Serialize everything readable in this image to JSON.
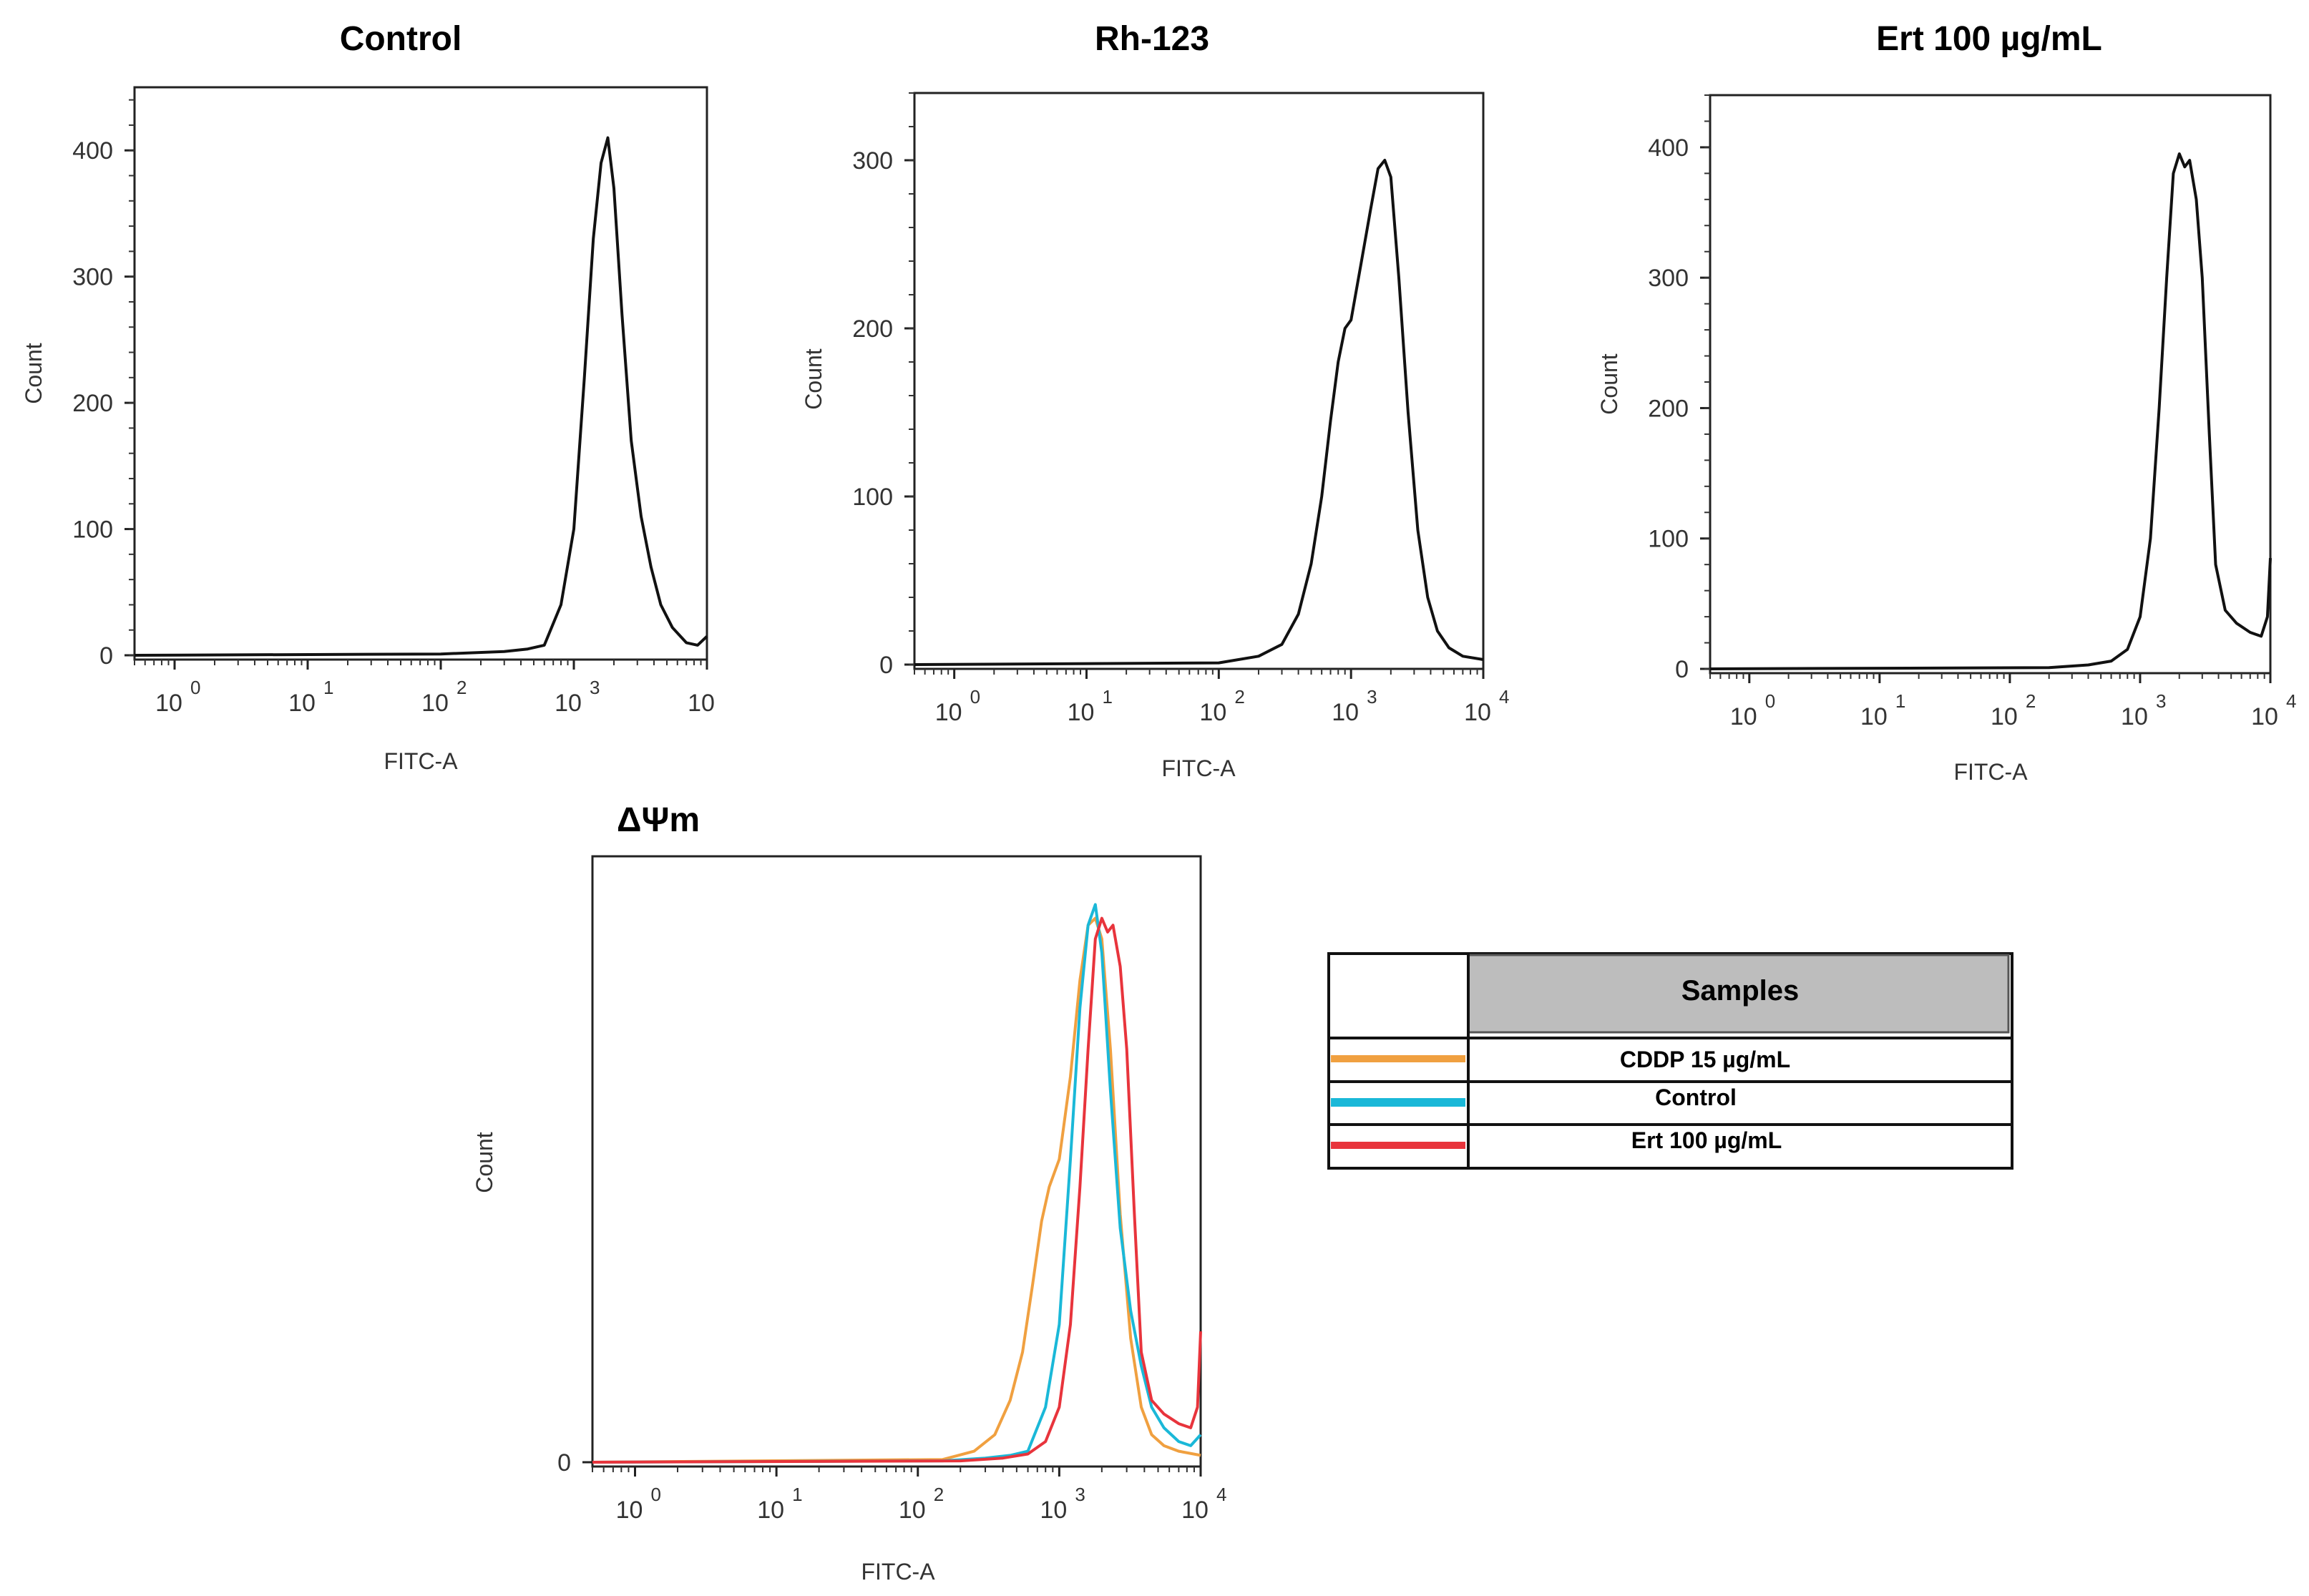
{
  "chart_data": [
    {
      "id": "control",
      "type": "line",
      "title": "Control",
      "xlabel": "FITC-A",
      "ylabel": "Count",
      "xscale": "log",
      "xlim": [
        0.5,
        10000
      ],
      "ylim": [
        0,
        450
      ],
      "yticks": [
        "0",
        "100",
        "200",
        "300",
        "400"
      ],
      "ytick_values": [
        0,
        100,
        200,
        300,
        400
      ],
      "xticks": [
        {
          "base": "10",
          "exp": "0",
          "value": 1
        },
        {
          "base": "10",
          "exp": "1",
          "value": 10
        },
        {
          "base": "10",
          "exp": "2",
          "value": 100
        },
        {
          "base": "10",
          "exp": "3",
          "value": 1000
        },
        {
          "base": "10",
          "exp": "",
          "value": 10000
        }
      ],
      "series": [
        {
          "name": "Control",
          "color": "#111111",
          "x": [
            0.5,
            100,
            300,
            450,
            600,
            800,
            1000,
            1200,
            1400,
            1600,
            1800,
            2000,
            2300,
            2700,
            3200,
            3800,
            4500,
            5500,
            7000,
            8500,
            10000
          ],
          "y": [
            0,
            1,
            3,
            5,
            8,
            40,
            100,
            220,
            330,
            390,
            410,
            370,
            270,
            170,
            110,
            70,
            40,
            22,
            10,
            8,
            15
          ]
        }
      ]
    },
    {
      "id": "rh123",
      "type": "line",
      "title": "Rh-123",
      "xlabel": "FITC-A",
      "ylabel": "Count",
      "xscale": "log",
      "xlim": [
        0.5,
        10000
      ],
      "ylim": [
        0,
        340
      ],
      "yticks": [
        "0",
        "100",
        "200",
        "300"
      ],
      "ytick_values": [
        0,
        100,
        200,
        300
      ],
      "xticks": [
        {
          "base": "10",
          "exp": "0",
          "value": 1
        },
        {
          "base": "10",
          "exp": "1",
          "value": 10
        },
        {
          "base": "10",
          "exp": "2",
          "value": 100
        },
        {
          "base": "10",
          "exp": "3",
          "value": 1000
        },
        {
          "base": "10",
          "exp": "4",
          "value": 10000
        }
      ],
      "series": [
        {
          "name": "Rh-123",
          "color": "#111111",
          "x": [
            0.5,
            100,
            200,
            300,
            400,
            500,
            600,
            700,
            800,
            900,
            1000,
            1200,
            1400,
            1600,
            1800,
            2000,
            2300,
            2700,
            3200,
            3800,
            4500,
            5500,
            7000,
            10000
          ],
          "y": [
            0,
            1,
            5,
            12,
            30,
            60,
            100,
            145,
            180,
            200,
            205,
            240,
            270,
            295,
            300,
            290,
            230,
            150,
            80,
            40,
            20,
            10,
            5,
            3
          ]
        }
      ]
    },
    {
      "id": "ert100",
      "type": "line",
      "title": "Ert 100 µg/mL",
      "xlabel": "FITC-A",
      "ylabel": "Count",
      "xscale": "log",
      "xlim": [
        0.5,
        10000
      ],
      "ylim": [
        0,
        440
      ],
      "yticks": [
        "0",
        "100",
        "200",
        "300",
        "400"
      ],
      "ytick_values": [
        0,
        100,
        200,
        300,
        400
      ],
      "xticks": [
        {
          "base": "10",
          "exp": "0",
          "value": 1
        },
        {
          "base": "10",
          "exp": "1",
          "value": 10
        },
        {
          "base": "10",
          "exp": "2",
          "value": 100
        },
        {
          "base": "10",
          "exp": "3",
          "value": 1000
        },
        {
          "base": "10",
          "exp": "4",
          "value": 10000
        }
      ],
      "series": [
        {
          "name": "Ert 100 µg/mL",
          "color": "#111111",
          "x": [
            0.5,
            200,
            400,
            600,
            800,
            1000,
            1200,
            1400,
            1600,
            1800,
            2000,
            2200,
            2400,
            2700,
            3000,
            3400,
            3800,
            4500,
            5500,
            7000,
            8500,
            9500,
            10000
          ],
          "y": [
            0,
            1,
            3,
            6,
            15,
            40,
            100,
            200,
            300,
            380,
            395,
            385,
            390,
            360,
            300,
            180,
            80,
            45,
            35,
            28,
            25,
            40,
            85
          ]
        }
      ]
    },
    {
      "id": "overlay",
      "type": "line",
      "title": "ΔΨm",
      "xlabel": "FITC-A",
      "ylabel": "Count",
      "xscale": "log",
      "xlim": [
        0.5,
        10000
      ],
      "ylim": [
        0,
        440
      ],
      "yticks": [
        "0"
      ],
      "ytick_values": [
        0
      ],
      "xticks": [
        {
          "base": "10",
          "exp": "0",
          "value": 1
        },
        {
          "base": "10",
          "exp": "1",
          "value": 10
        },
        {
          "base": "10",
          "exp": "2",
          "value": 100
        },
        {
          "base": "10",
          "exp": "3",
          "value": 1000
        },
        {
          "base": "10",
          "exp": "4",
          "value": 10000
        }
      ],
      "series": [
        {
          "name": "CDDP 15 µg/mL",
          "color": "#f0a040",
          "x": [
            0.5,
            150,
            250,
            350,
            450,
            550,
            650,
            750,
            850,
            1000,
            1200,
            1400,
            1600,
            1800,
            2000,
            2300,
            2700,
            3200,
            3800,
            4500,
            5500,
            7000,
            10000
          ],
          "y": [
            0,
            2,
            8,
            20,
            45,
            80,
            130,
            175,
            200,
            220,
            280,
            350,
            390,
            395,
            380,
            300,
            180,
            90,
            40,
            20,
            12,
            8,
            5
          ]
        },
        {
          "name": "Control",
          "color": "#1ab8d8",
          "x": [
            0.5,
            150,
            300,
            450,
            600,
            800,
            1000,
            1200,
            1400,
            1600,
            1800,
            2000,
            2300,
            2700,
            3200,
            3800,
            4500,
            5500,
            7000,
            8500,
            10000
          ],
          "y": [
            0,
            1,
            3,
            5,
            8,
            40,
            100,
            220,
            330,
            390,
            405,
            370,
            270,
            170,
            110,
            70,
            40,
            25,
            15,
            12,
            20
          ]
        },
        {
          "name": "Ert 100 µg/mL",
          "color": "#e8343c",
          "x": [
            0.5,
            200,
            400,
            600,
            800,
            1000,
            1200,
            1400,
            1600,
            1800,
            2000,
            2200,
            2400,
            2700,
            3000,
            3400,
            3800,
            4500,
            5500,
            7000,
            8500,
            9500,
            10000
          ],
          "y": [
            0,
            1,
            3,
            6,
            15,
            40,
            100,
            200,
            300,
            380,
            395,
            385,
            390,
            360,
            300,
            180,
            80,
            45,
            35,
            28,
            25,
            40,
            95
          ]
        }
      ]
    }
  ],
  "legend": {
    "header": "Samples",
    "items": [
      {
        "label": "CDDP 15 µg/mL",
        "color": "#f0a040"
      },
      {
        "label": "Control",
        "color": "#1ab8d8"
      },
      {
        "label": "Ert 100 µg/mL",
        "color": "#e8343c"
      }
    ]
  }
}
